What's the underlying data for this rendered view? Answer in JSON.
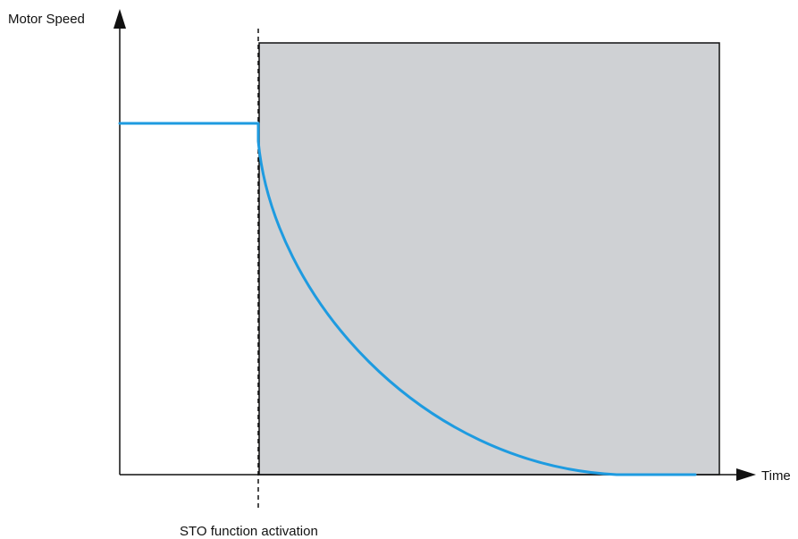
{
  "diagram": {
    "y_axis_label": "Motor Speed",
    "x_axis_label": "Time",
    "event_label": "STO function activation"
  },
  "colors": {
    "curve": "#1e9be0",
    "shaded_region": "#cfd1d4",
    "axis": "#111111"
  }
}
